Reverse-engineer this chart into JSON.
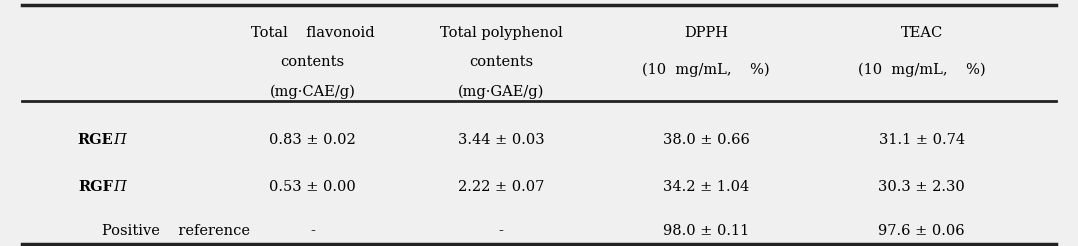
{
  "col_headers": [
    [
      "Total    flavonoid",
      "contents",
      "(mg·CAE/g)"
    ],
    [
      "Total polyphenol",
      "contents",
      "(mg·GAE/g)"
    ],
    [
      "DPPH",
      "(10  mg/mL,    %)",
      ""
    ],
    [
      "TEAC",
      "(10  mg/mL,    %)",
      ""
    ]
  ],
  "rows": [
    {
      "label": [
        "RGEΠ"
      ],
      "label_bold_prefix": "RGE",
      "label_bold_suffix": "Π",
      "values": [
        "0.83 ± 0.02",
        "3.44 ± 0.03",
        "38.0 ± 0.66",
        "31.1 ± 0.74"
      ]
    },
    {
      "label": [
        "RGFΠ"
      ],
      "label_bold_prefix": "RGF",
      "label_bold_suffix": "Π",
      "values": [
        "0.53 ± 0.00",
        "2.22 ± 0.07",
        "34.2 ± 1.04",
        "30.3 ± 2.30"
      ]
    },
    {
      "label": [
        "Positive    reference"
      ],
      "label_bold_prefix": "",
      "label_bold_suffix": "",
      "values": [
        "-",
        "-",
        "98.0 ± 0.11",
        "97.6 ± 0.06"
      ]
    }
  ],
  "bg_color": "#f0f0f0",
  "table_bg": "#ffffff",
  "header_line_color": "#333333",
  "font_size": 10.5,
  "header_font_size": 10.5
}
